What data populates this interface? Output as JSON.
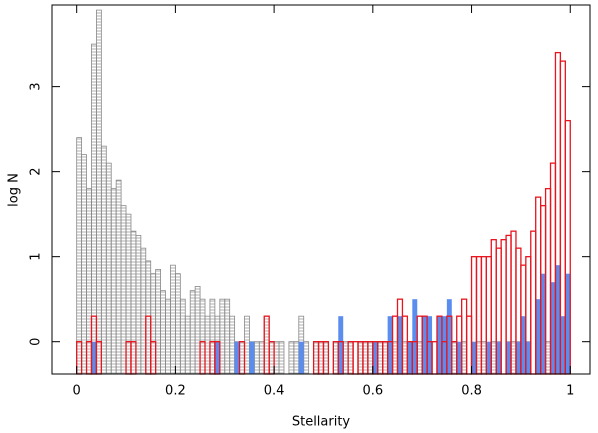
{
  "chart_data": {
    "type": "histogram",
    "xlabel": "Stellarity",
    "ylabel": "log N",
    "xlim": [
      -0.05,
      1.04
    ],
    "ylim": [
      -0.38,
      3.96
    ],
    "xticks": [
      0,
      0.2,
      0.4,
      0.6,
      0.8,
      1
    ],
    "yticks": [
      0,
      1,
      2,
      3
    ],
    "bins": [
      0,
      0.01,
      0.02,
      0.03,
      0.04,
      0.05,
      0.06,
      0.07,
      0.08,
      0.09,
      0.1,
      0.11,
      0.12,
      0.13,
      0.14,
      0.15,
      0.16,
      0.17,
      0.18,
      0.19,
      0.2,
      0.21,
      0.22,
      0.23,
      0.24,
      0.25,
      0.26,
      0.27,
      0.28,
      0.29,
      0.3,
      0.31,
      0.32,
      0.33,
      0.34,
      0.35,
      0.36,
      0.37,
      0.38,
      0.39,
      0.4,
      0.41,
      0.42,
      0.43,
      0.44,
      0.45,
      0.46,
      0.47,
      0.48,
      0.49,
      0.5,
      0.51,
      0.52,
      0.53,
      0.54,
      0.55,
      0.56,
      0.57,
      0.58,
      0.59,
      0.6,
      0.61,
      0.62,
      0.63,
      0.64,
      0.65,
      0.66,
      0.67,
      0.68,
      0.69,
      0.7,
      0.71,
      0.72,
      0.73,
      0.74,
      0.75,
      0.76,
      0.77,
      0.78,
      0.79,
      0.8,
      0.81,
      0.82,
      0.83,
      0.84,
      0.85,
      0.86,
      0.87,
      0.88,
      0.89,
      0.9,
      0.91,
      0.92,
      0.93,
      0.94,
      0.95,
      0.96,
      0.97,
      0.98,
      0.99,
      1
    ],
    "series": [
      {
        "style": "hatched",
        "color": "#888888",
        "values": [
          2.4,
          2.2,
          1.8,
          3.5,
          3.9,
          2.3,
          2.1,
          1.8,
          1.9,
          1.6,
          1.5,
          1.3,
          1.25,
          1.1,
          0.95,
          0.8,
          0.85,
          0.6,
          0.5,
          0.9,
          0.8,
          0.5,
          0.3,
          0.6,
          0.65,
          0.5,
          0.3,
          0.5,
          0.3,
          0.5,
          0.5,
          0.3,
          0,
          0,
          0.3,
          0,
          0,
          0,
          0.3,
          0,
          0,
          0,
          null,
          0,
          0,
          0.3,
          0,
          null,
          0,
          0,
          0,
          null,
          0,
          0,
          0,
          0,
          null,
          0,
          0,
          0,
          null,
          0,
          0,
          null,
          0,
          0,
          0,
          null,
          0,
          0,
          0,
          0,
          null,
          0,
          0,
          0,
          0,
          null,
          0,
          null,
          null,
          0,
          0,
          null,
          0,
          0,
          null,
          0,
          0,
          0,
          0,
          0,
          null,
          0.3,
          0,
          0,
          0.3,
          0.3,
          0,
          0.6
        ]
      },
      {
        "style": "filled",
        "color": "#5b8def",
        "values": [
          null,
          null,
          null,
          0,
          null,
          null,
          null,
          null,
          null,
          null,
          null,
          null,
          null,
          null,
          null,
          null,
          null,
          null,
          null,
          null,
          null,
          null,
          null,
          null,
          null,
          null,
          null,
          null,
          0,
          null,
          null,
          null,
          0,
          null,
          null,
          0,
          null,
          null,
          null,
          null,
          null,
          null,
          null,
          null,
          null,
          0,
          null,
          null,
          null,
          null,
          null,
          null,
          null,
          0.3,
          null,
          null,
          null,
          null,
          null,
          null,
          0,
          null,
          null,
          0.3,
          null,
          0.3,
          null,
          0,
          0.5,
          null,
          0.3,
          0.3,
          null,
          0.3,
          0.3,
          0.5,
          null,
          0,
          null,
          null,
          0,
          null,
          null,
          0,
          null,
          0,
          null,
          0,
          null,
          0,
          0.3,
          0,
          null,
          0.5,
          0.8,
          null,
          0.7,
          0.9,
          0.3,
          0.8
        ]
      },
      {
        "style": "outline",
        "color": "#e8141e",
        "values": [
          0,
          null,
          0,
          0.3,
          0,
          null,
          null,
          null,
          null,
          null,
          0,
          0,
          null,
          null,
          0.3,
          0,
          null,
          null,
          null,
          null,
          null,
          null,
          null,
          null,
          null,
          0,
          null,
          0,
          0,
          null,
          null,
          null,
          null,
          0,
          null,
          null,
          null,
          null,
          0.3,
          0,
          null,
          null,
          null,
          null,
          null,
          null,
          null,
          null,
          0,
          0,
          0,
          null,
          0,
          0,
          null,
          0,
          0,
          0,
          0,
          0,
          0,
          0,
          0,
          0,
          0.3,
          0.5,
          0.3,
          0,
          0,
          0.3,
          0.3,
          0,
          0,
          0.3,
          0,
          0.3,
          0,
          0.3,
          0.5,
          0.3,
          1.0,
          1.0,
          1.0,
          1.0,
          1.2,
          1.1,
          1.2,
          1.25,
          1.3,
          1.1,
          0.9,
          1.0,
          1.3,
          1.7,
          1.6,
          1.8,
          2.1,
          3.4,
          3.3,
          2.6
        ]
      }
    ]
  }
}
